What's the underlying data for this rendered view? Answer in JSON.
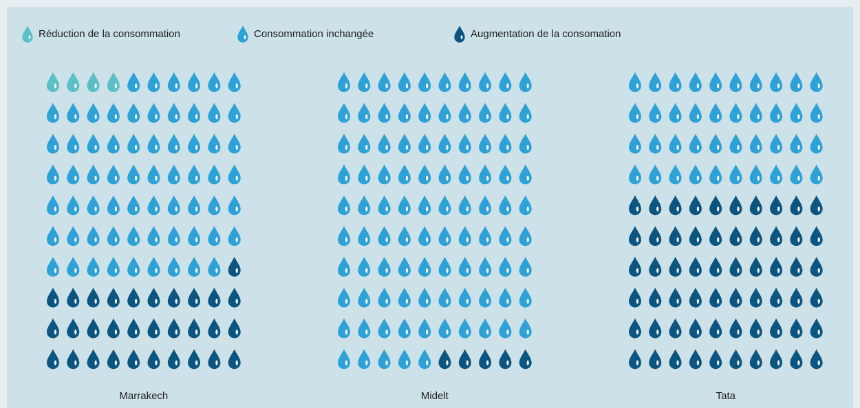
{
  "chart_data": {
    "type": "waffle",
    "categories": [
      "Marrakech",
      "Midelt",
      "Tata"
    ],
    "series": [
      {
        "name": "Réduction de la consommation",
        "color": "#5bbfc6",
        "values": [
          4,
          0,
          0
        ]
      },
      {
        "name": "Consommation inchangée",
        "color": "#2ea2d6",
        "values": [
          65,
          95,
          40
        ]
      },
      {
        "name": "Augmentation de la consomation",
        "color": "#0c5580",
        "values": [
          31,
          5,
          60
        ]
      }
    ]
  }
}
